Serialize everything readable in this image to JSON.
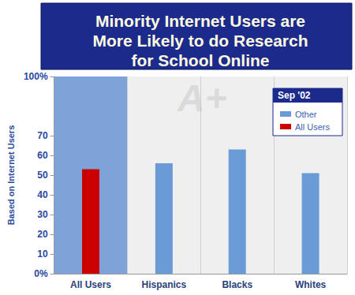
{
  "chart_data": {
    "type": "bar",
    "title": "Minority Internet Users are More Likely to do Research for School Online",
    "y_label": "Based on Internet Users",
    "categories": [
      "All Users",
      "Hispanics",
      "Blacks",
      "Whites"
    ],
    "series": [
      {
        "name": "Other",
        "color": "#6b9bd6",
        "values": [
          null,
          56,
          63,
          51
        ]
      },
      {
        "name": "All Users",
        "color": "#cc0000",
        "values": [
          53,
          null,
          null,
          null
        ]
      }
    ],
    "ylim": [
      0,
      100
    ],
    "yticks": [
      {
        "value": 0,
        "label": "0%"
      },
      10,
      20,
      30,
      40,
      50,
      60,
      70,
      {
        "value": 100,
        "label": "100%"
      }
    ],
    "grid": false,
    "legend": "upper right",
    "legend_title": "Sep '02",
    "annotation": "A+"
  }
}
